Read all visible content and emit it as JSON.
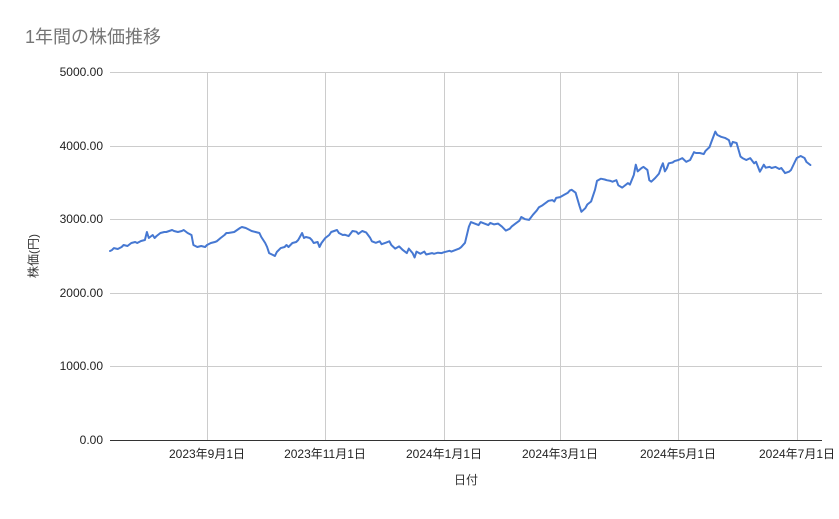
{
  "page": {
    "title": "1年間の株価推移"
  },
  "chart_data": {
    "type": "line",
    "title": "1年間の株価推移",
    "xlabel": "日付",
    "ylabel": "株価(円)",
    "ylim": [
      0,
      5000
    ],
    "y_ticks": [
      {
        "value": 0,
        "label": "0.00"
      },
      {
        "value": 1000,
        "label": "1000.00"
      },
      {
        "value": 2000,
        "label": "2000.00"
      },
      {
        "value": 3000,
        "label": "3000.00"
      },
      {
        "value": 4000,
        "label": "4000.00"
      },
      {
        "value": 5000,
        "label": "5000.00"
      }
    ],
    "x_domain": [
      "2023-07-13",
      "2024-07-14"
    ],
    "x_ticks": [
      {
        "date": "2023-09-01",
        "label": "2023年9月1日"
      },
      {
        "date": "2023-11-01",
        "label": "2023年11月1日"
      },
      {
        "date": "2024-01-01",
        "label": "2024年1月1日"
      },
      {
        "date": "2024-03-01",
        "label": "2024年3月1日"
      },
      {
        "date": "2024-05-01",
        "label": "2024年5月1日"
      },
      {
        "date": "2024-07-01",
        "label": "2024年7月1日"
      }
    ],
    "grid": true,
    "legend": "none",
    "colors": {
      "series": "#4678d2",
      "grid": "#cccccc",
      "axis": "#333333",
      "tick_label": "#222222",
      "axis_title": "#333333",
      "title": "#757575",
      "background": "#ffffff"
    },
    "series": [
      {
        "name": "株価",
        "color": "#4678d2",
        "points": [
          [
            "2023-07-13",
            2568
          ],
          [
            "2023-07-14",
            2580
          ],
          [
            "2023-07-15",
            2608
          ],
          [
            "2023-07-17",
            2595
          ],
          [
            "2023-07-19",
            2622
          ],
          [
            "2023-07-20",
            2649
          ],
          [
            "2023-07-22",
            2636
          ],
          [
            "2023-07-24",
            2677
          ],
          [
            "2023-07-26",
            2690
          ],
          [
            "2023-07-27",
            2677
          ],
          [
            "2023-07-29",
            2704
          ],
          [
            "2023-07-31",
            2717
          ],
          [
            "2023-08-01",
            2826
          ],
          [
            "2023-08-02",
            2745
          ],
          [
            "2023-08-04",
            2785
          ],
          [
            "2023-08-05",
            2745
          ],
          [
            "2023-08-06",
            2772
          ],
          [
            "2023-08-08",
            2812
          ],
          [
            "2023-08-10",
            2826
          ],
          [
            "2023-08-11",
            2826
          ],
          [
            "2023-08-14",
            2853
          ],
          [
            "2023-08-15",
            2840
          ],
          [
            "2023-08-17",
            2826
          ],
          [
            "2023-08-19",
            2840
          ],
          [
            "2023-08-20",
            2853
          ],
          [
            "2023-08-22",
            2812
          ],
          [
            "2023-08-24",
            2785
          ],
          [
            "2023-08-25",
            2649
          ],
          [
            "2023-08-27",
            2622
          ],
          [
            "2023-08-29",
            2636
          ],
          [
            "2023-08-31",
            2622
          ],
          [
            "2023-09-01",
            2649
          ],
          [
            "2023-09-03",
            2677
          ],
          [
            "2023-09-05",
            2690
          ],
          [
            "2023-09-06",
            2700
          ],
          [
            "2023-09-08",
            2745
          ],
          [
            "2023-09-10",
            2785
          ],
          [
            "2023-09-11",
            2812
          ],
          [
            "2023-09-12",
            2812
          ],
          [
            "2023-09-15",
            2826
          ],
          [
            "2023-09-18",
            2880
          ],
          [
            "2023-09-19",
            2894
          ],
          [
            "2023-09-21",
            2880
          ],
          [
            "2023-09-23",
            2853
          ],
          [
            "2023-09-24",
            2840
          ],
          [
            "2023-09-26",
            2826
          ],
          [
            "2023-09-28",
            2812
          ],
          [
            "2023-09-29",
            2758
          ],
          [
            "2023-10-01",
            2677
          ],
          [
            "2023-10-02",
            2622
          ],
          [
            "2023-10-03",
            2540
          ],
          [
            "2023-10-05",
            2513
          ],
          [
            "2023-10-06",
            2500
          ],
          [
            "2023-10-07",
            2554
          ],
          [
            "2023-10-09",
            2608
          ],
          [
            "2023-10-11",
            2622
          ],
          [
            "2023-10-12",
            2649
          ],
          [
            "2023-10-13",
            2622
          ],
          [
            "2023-10-15",
            2677
          ],
          [
            "2023-10-17",
            2690
          ],
          [
            "2023-10-18",
            2717
          ],
          [
            "2023-10-20",
            2812
          ],
          [
            "2023-10-21",
            2745
          ],
          [
            "2023-10-22",
            2758
          ],
          [
            "2023-10-24",
            2745
          ],
          [
            "2023-10-25",
            2717
          ],
          [
            "2023-10-26",
            2677
          ],
          [
            "2023-10-28",
            2690
          ],
          [
            "2023-10-29",
            2622
          ],
          [
            "2023-10-30",
            2677
          ],
          [
            "2023-11-01",
            2745
          ],
          [
            "2023-11-03",
            2785
          ],
          [
            "2023-11-04",
            2826
          ],
          [
            "2023-11-07",
            2853
          ],
          [
            "2023-11-08",
            2812
          ],
          [
            "2023-11-10",
            2785
          ],
          [
            "2023-11-11",
            2790
          ],
          [
            "2023-11-13",
            2770
          ],
          [
            "2023-11-15",
            2840
          ],
          [
            "2023-11-17",
            2830
          ],
          [
            "2023-11-18",
            2800
          ],
          [
            "2023-11-20",
            2840
          ],
          [
            "2023-11-22",
            2820
          ],
          [
            "2023-11-24",
            2750
          ],
          [
            "2023-11-25",
            2700
          ],
          [
            "2023-11-27",
            2680
          ],
          [
            "2023-11-29",
            2700
          ],
          [
            "2023-11-30",
            2660
          ],
          [
            "2023-12-02",
            2680
          ],
          [
            "2023-12-04",
            2700
          ],
          [
            "2023-12-05",
            2650
          ],
          [
            "2023-12-07",
            2600
          ],
          [
            "2023-12-09",
            2630
          ],
          [
            "2023-12-11",
            2580
          ],
          [
            "2023-12-13",
            2540
          ],
          [
            "2023-12-14",
            2600
          ],
          [
            "2023-12-16",
            2540
          ],
          [
            "2023-12-17",
            2480
          ],
          [
            "2023-12-18",
            2560
          ],
          [
            "2023-12-20",
            2530
          ],
          [
            "2023-12-22",
            2560
          ],
          [
            "2023-12-23",
            2520
          ],
          [
            "2023-12-26",
            2540
          ],
          [
            "2023-12-27",
            2530
          ],
          [
            "2023-12-29",
            2545
          ],
          [
            "2023-12-31",
            2540
          ],
          [
            "2024-01-01",
            2550
          ],
          [
            "2024-01-04",
            2570
          ],
          [
            "2024-01-05",
            2560
          ],
          [
            "2024-01-07",
            2580
          ],
          [
            "2024-01-09",
            2600
          ],
          [
            "2024-01-10",
            2620
          ],
          [
            "2024-01-12",
            2680
          ],
          [
            "2024-01-14",
            2900
          ],
          [
            "2024-01-15",
            2960
          ],
          [
            "2024-01-17",
            2940
          ],
          [
            "2024-01-19",
            2920
          ],
          [
            "2024-01-20",
            2960
          ],
          [
            "2024-01-22",
            2940
          ],
          [
            "2024-01-24",
            2920
          ],
          [
            "2024-01-25",
            2950
          ],
          [
            "2024-01-27",
            2930
          ],
          [
            "2024-01-29",
            2940
          ],
          [
            "2024-01-31",
            2900
          ],
          [
            "2024-02-02",
            2845
          ],
          [
            "2024-02-04",
            2870
          ],
          [
            "2024-02-05",
            2900
          ],
          [
            "2024-02-07",
            2940
          ],
          [
            "2024-02-09",
            2980
          ],
          [
            "2024-02-10",
            3030
          ],
          [
            "2024-02-12",
            3000
          ],
          [
            "2024-02-14",
            2990
          ],
          [
            "2024-02-16",
            3060
          ],
          [
            "2024-02-18",
            3120
          ],
          [
            "2024-02-19",
            3160
          ],
          [
            "2024-02-21",
            3190
          ],
          [
            "2024-02-23",
            3230
          ],
          [
            "2024-02-24",
            3250
          ],
          [
            "2024-02-26",
            3260
          ],
          [
            "2024-02-27",
            3240
          ],
          [
            "2024-02-28",
            3290
          ],
          [
            "2024-03-01",
            3300
          ],
          [
            "2024-03-03",
            3330
          ],
          [
            "2024-03-05",
            3360
          ],
          [
            "2024-03-06",
            3390
          ],
          [
            "2024-03-07",
            3400
          ],
          [
            "2024-03-09",
            3360
          ],
          [
            "2024-03-11",
            3180
          ],
          [
            "2024-03-12",
            3100
          ],
          [
            "2024-03-14",
            3150
          ],
          [
            "2024-03-15",
            3200
          ],
          [
            "2024-03-17",
            3240
          ],
          [
            "2024-03-19",
            3400
          ],
          [
            "2024-03-20",
            3520
          ],
          [
            "2024-03-22",
            3550
          ],
          [
            "2024-03-24",
            3540
          ],
          [
            "2024-03-25",
            3530
          ],
          [
            "2024-03-27",
            3520
          ],
          [
            "2024-03-28",
            3510
          ],
          [
            "2024-03-30",
            3530
          ],
          [
            "2024-03-31",
            3460
          ],
          [
            "2024-04-02",
            3430
          ],
          [
            "2024-04-03",
            3450
          ],
          [
            "2024-04-05",
            3490
          ],
          [
            "2024-04-06",
            3470
          ],
          [
            "2024-04-08",
            3600
          ],
          [
            "2024-04-09",
            3740
          ],
          [
            "2024-04-10",
            3650
          ],
          [
            "2024-04-12",
            3695
          ],
          [
            "2024-04-13",
            3710
          ],
          [
            "2024-04-15",
            3670
          ],
          [
            "2024-04-16",
            3530
          ],
          [
            "2024-04-17",
            3510
          ],
          [
            "2024-04-19",
            3560
          ],
          [
            "2024-04-21",
            3620
          ],
          [
            "2024-04-22",
            3700
          ],
          [
            "2024-04-23",
            3760
          ],
          [
            "2024-04-24",
            3650
          ],
          [
            "2024-04-25",
            3690
          ],
          [
            "2024-04-26",
            3760
          ],
          [
            "2024-04-28",
            3770
          ],
          [
            "2024-04-29",
            3790
          ],
          [
            "2024-05-01",
            3805
          ],
          [
            "2024-05-03",
            3830
          ],
          [
            "2024-05-05",
            3780
          ],
          [
            "2024-05-07",
            3805
          ],
          [
            "2024-05-09",
            3910
          ],
          [
            "2024-05-10",
            3900
          ],
          [
            "2024-05-12",
            3900
          ],
          [
            "2024-05-14",
            3885
          ],
          [
            "2024-05-15",
            3930
          ],
          [
            "2024-05-17",
            3980
          ],
          [
            "2024-05-18",
            4050
          ],
          [
            "2024-05-20",
            4190
          ],
          [
            "2024-05-21",
            4145
          ],
          [
            "2024-05-23",
            4120
          ],
          [
            "2024-05-25",
            4105
          ],
          [
            "2024-05-27",
            4075
          ],
          [
            "2024-05-28",
            3990
          ],
          [
            "2024-05-29",
            4050
          ],
          [
            "2024-05-31",
            4035
          ],
          [
            "2024-06-02",
            3850
          ],
          [
            "2024-06-03",
            3830
          ],
          [
            "2024-06-05",
            3805
          ],
          [
            "2024-06-07",
            3830
          ],
          [
            "2024-06-09",
            3760
          ],
          [
            "2024-06-10",
            3780
          ],
          [
            "2024-06-12",
            3645
          ],
          [
            "2024-06-14",
            3740
          ],
          [
            "2024-06-15",
            3700
          ],
          [
            "2024-06-17",
            3710
          ],
          [
            "2024-06-18",
            3695
          ],
          [
            "2024-06-20",
            3710
          ],
          [
            "2024-06-22",
            3682
          ],
          [
            "2024-06-23",
            3695
          ],
          [
            "2024-06-25",
            3627
          ],
          [
            "2024-06-27",
            3645
          ],
          [
            "2024-06-28",
            3668
          ],
          [
            "2024-06-30",
            3777
          ],
          [
            "2024-07-01",
            3831
          ],
          [
            "2024-07-03",
            3859
          ],
          [
            "2024-07-05",
            3831
          ],
          [
            "2024-07-06",
            3777
          ],
          [
            "2024-07-08",
            3736
          ]
        ]
      }
    ]
  }
}
